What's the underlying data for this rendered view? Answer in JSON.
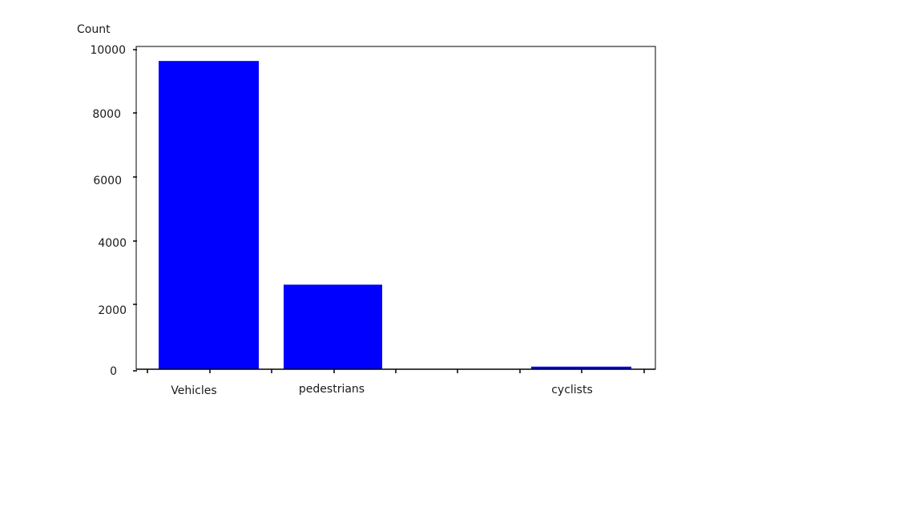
{
  "chart_data": {
    "type": "bar",
    "title": "",
    "xlabel": "",
    "ylabel": "Count",
    "ylim": [
      0,
      10000
    ],
    "yticks": [
      "0",
      "2000",
      "4000",
      "6000",
      "8000",
      "10000"
    ],
    "categories": [
      "Vehicles",
      "pedestrians",
      "",
      "",
      "cyclists"
    ],
    "values": [
      9550,
      2620,
      0,
      0,
      80
    ],
    "bar_color": "#0000ff",
    "grid": false
  }
}
